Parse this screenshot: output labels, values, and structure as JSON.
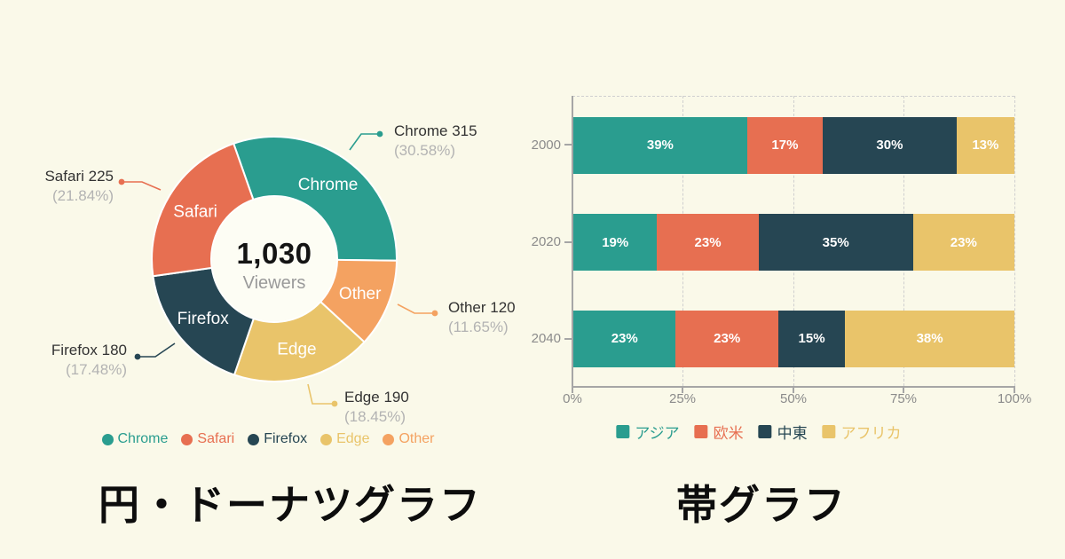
{
  "chart_data": [
    {
      "type": "pie",
      "donut": true,
      "title": "円・ドーナツグラフ",
      "center_total": "1,030",
      "center_label": "Viewers",
      "legend_position": "bottom",
      "start_angle_deg": -19.4,
      "slices": [
        {
          "name": "Chrome",
          "value": 315,
          "percent_label": "(30.58%)",
          "color": "#2a9d8f"
        },
        {
          "name": "Safari",
          "value": 225,
          "percent_label": "(21.84%)",
          "color": "#e76f51"
        },
        {
          "name": "Firefox",
          "value": 180,
          "percent_label": "(17.48%)",
          "color": "#264653"
        },
        {
          "name": "Edge",
          "value": 190,
          "percent_label": "(18.45%)",
          "color": "#e9c46a"
        },
        {
          "name": "Other",
          "value": 120,
          "percent_label": "(11.65%)",
          "color": "#f4a261"
        }
      ]
    },
    {
      "type": "bar",
      "orientation": "horizontal",
      "stacked": true,
      "normalized": true,
      "title": "帯グラフ",
      "categories": [
        "2000",
        "2020",
        "2040"
      ],
      "series": [
        {
          "name": "アジア",
          "color": "#2a9d8f",
          "values": [
            39,
            19,
            23
          ]
        },
        {
          "name": "欧米",
          "color": "#e76f51",
          "values": [
            17,
            23,
            23
          ]
        },
        {
          "name": "中東",
          "color": "#264653",
          "values": [
            30,
            35,
            15
          ]
        },
        {
          "name": "アフリカ",
          "color": "#e9c46a",
          "values": [
            13,
            23,
            38
          ]
        }
      ],
      "value_suffix": "%",
      "x_ticks": [
        "0%",
        "25%",
        "50%",
        "75%",
        "100%"
      ],
      "xlim": [
        0,
        100
      ],
      "grid": "dashed vertical every 25%",
      "legend_position": "bottom"
    }
  ],
  "colors": {
    "background": "#faf9e9",
    "donut_hole": "#fdfdf4",
    "axis": "#a6a6a6",
    "grid": "#cfcfcf",
    "muted_text": "#b3b3b3"
  }
}
